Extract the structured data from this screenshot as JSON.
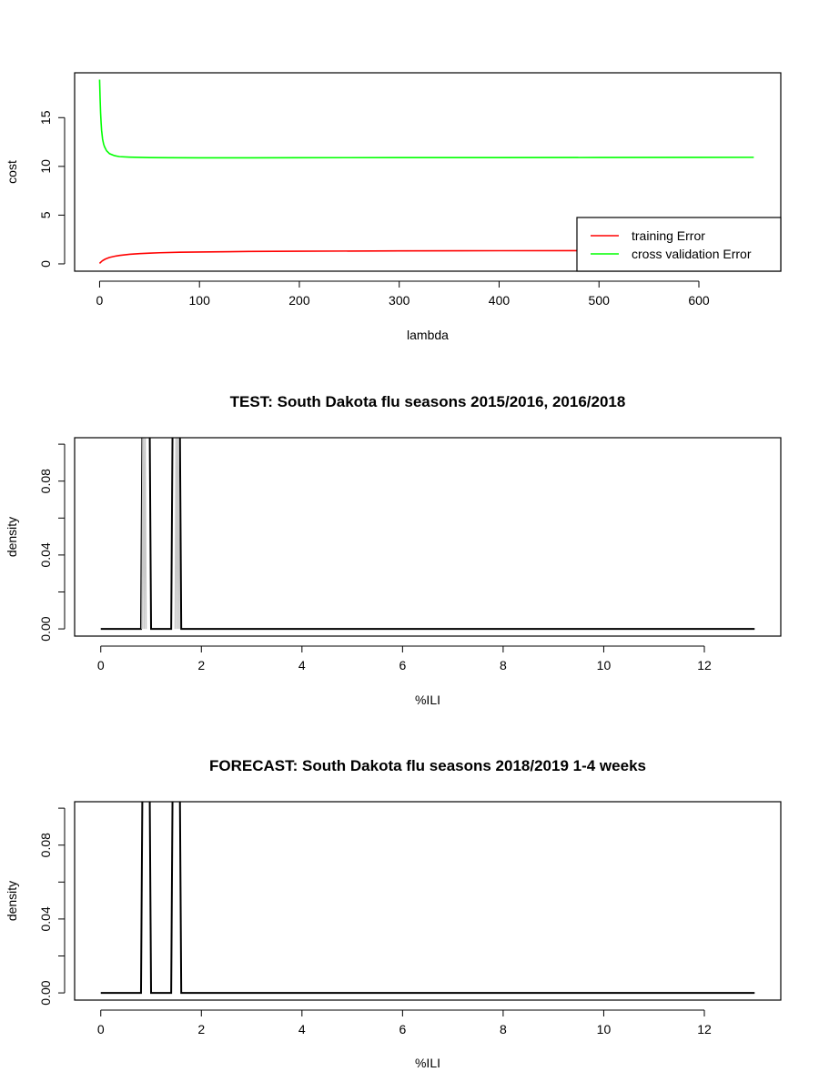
{
  "chart_data": [
    {
      "type": "line",
      "title": "",
      "xlabel": "lambda",
      "ylabel": "cost",
      "xlim": [
        -25,
        682
      ],
      "ylim": [
        -0.75,
        19.6
      ],
      "xticks": [
        0,
        100,
        200,
        300,
        400,
        500,
        600
      ],
      "xtick_labels": [
        "0",
        "100",
        "200",
        "300",
        "400",
        "500",
        "600"
      ],
      "yticks": [
        0,
        5,
        10,
        15
      ],
      "ytick_labels": [
        "0",
        "5",
        "10",
        "15"
      ],
      "grid": false,
      "legend": {
        "position": "bottom-right",
        "entries": [
          "training Error",
          "cross validation Error"
        ]
      },
      "series": [
        {
          "name": "training Error",
          "color": "#ff0000",
          "x": [
            0,
            1,
            2,
            3,
            5,
            7,
            10,
            15,
            20,
            30,
            40,
            50,
            60,
            80,
            100,
            150,
            200,
            300,
            400,
            500,
            600,
            655
          ],
          "y": [
            0.05,
            0.15,
            0.25,
            0.33,
            0.45,
            0.55,
            0.66,
            0.78,
            0.87,
            0.98,
            1.05,
            1.1,
            1.14,
            1.19,
            1.22,
            1.27,
            1.3,
            1.33,
            1.35,
            1.36,
            1.37,
            1.37
          ]
        },
        {
          "name": "cross validation Error",
          "color": "#00ff00",
          "x": [
            0,
            0.5,
            1,
            1.5,
            2,
            3,
            4,
            5,
            7,
            10,
            15,
            20,
            30,
            40,
            50,
            70,
            100,
            150,
            200,
            300,
            400,
            500,
            600,
            655
          ],
          "y": [
            18.9,
            17.0,
            15.5,
            14.5,
            13.7,
            12.8,
            12.3,
            12.0,
            11.6,
            11.3,
            11.1,
            11.0,
            10.95,
            10.92,
            10.9,
            10.89,
            10.88,
            10.88,
            10.89,
            10.9,
            10.9,
            10.91,
            10.92,
            10.93
          ]
        }
      ]
    },
    {
      "type": "line",
      "title": "TEST: South Dakota  flu seasons 2015/2016, 2016/2018",
      "xlabel": "%ILI",
      "ylabel": "density",
      "xlim": [
        -0.52,
        13.52
      ],
      "ylim": [
        -0.0039,
        0.1035
      ],
      "xticks": [
        0,
        2,
        4,
        6,
        8,
        10,
        12
      ],
      "xtick_labels": [
        "0",
        "2",
        "4",
        "6",
        "8",
        "10",
        "12"
      ],
      "yticks": [
        0,
        0.02,
        0.04,
        0.06,
        0.08,
        0.1
      ],
      "ytick_labels": [
        "0.00",
        "",
        "0.04",
        "",
        "0.08",
        ""
      ],
      "grid": false,
      "series": [
        {
          "color": "#000000",
          "x": [
            0,
            0.8,
            0.83,
            0.97,
            1.0,
            1.4,
            1.43,
            1.57,
            1.6,
            13
          ],
          "y": [
            0,
            0,
            0.12,
            0.12,
            0,
            0,
            0.12,
            0.12,
            0,
            0
          ]
        },
        {
          "color": "#c8c8c8",
          "x": [
            0.82,
            0.84,
            0.86,
            0.88,
            0.9
          ],
          "y": [
            0,
            0.12,
            0,
            0.12,
            0
          ]
        },
        {
          "color": "#c8c8c8",
          "x": [
            1.48,
            1.5,
            1.52,
            1.54,
            1.56
          ],
          "y": [
            0,
            0.12,
            0,
            0.12,
            0
          ]
        }
      ]
    },
    {
      "type": "line",
      "title": "FORECAST: South Dakota flu seasons 2018/2019 1-4 weeks",
      "xlabel": "%ILI",
      "ylabel": "density",
      "xlim": [
        -0.52,
        13.52
      ],
      "ylim": [
        -0.0039,
        0.1035
      ],
      "xticks": [
        0,
        2,
        4,
        6,
        8,
        10,
        12
      ],
      "xtick_labels": [
        "0",
        "2",
        "4",
        "6",
        "8",
        "10",
        "12"
      ],
      "yticks": [
        0,
        0.02,
        0.04,
        0.06,
        0.08,
        0.1
      ],
      "ytick_labels": [
        "0.00",
        "",
        "0.04",
        "",
        "0.08",
        ""
      ],
      "grid": false,
      "series": [
        {
          "color": "#000000",
          "x": [
            0,
            0.8,
            0.83,
            0.97,
            1.0,
            1.4,
            1.43,
            1.57,
            1.6,
            13
          ],
          "y": [
            0,
            0,
            0.12,
            0.12,
            0,
            0,
            0.12,
            0.12,
            0,
            0
          ]
        }
      ]
    }
  ]
}
